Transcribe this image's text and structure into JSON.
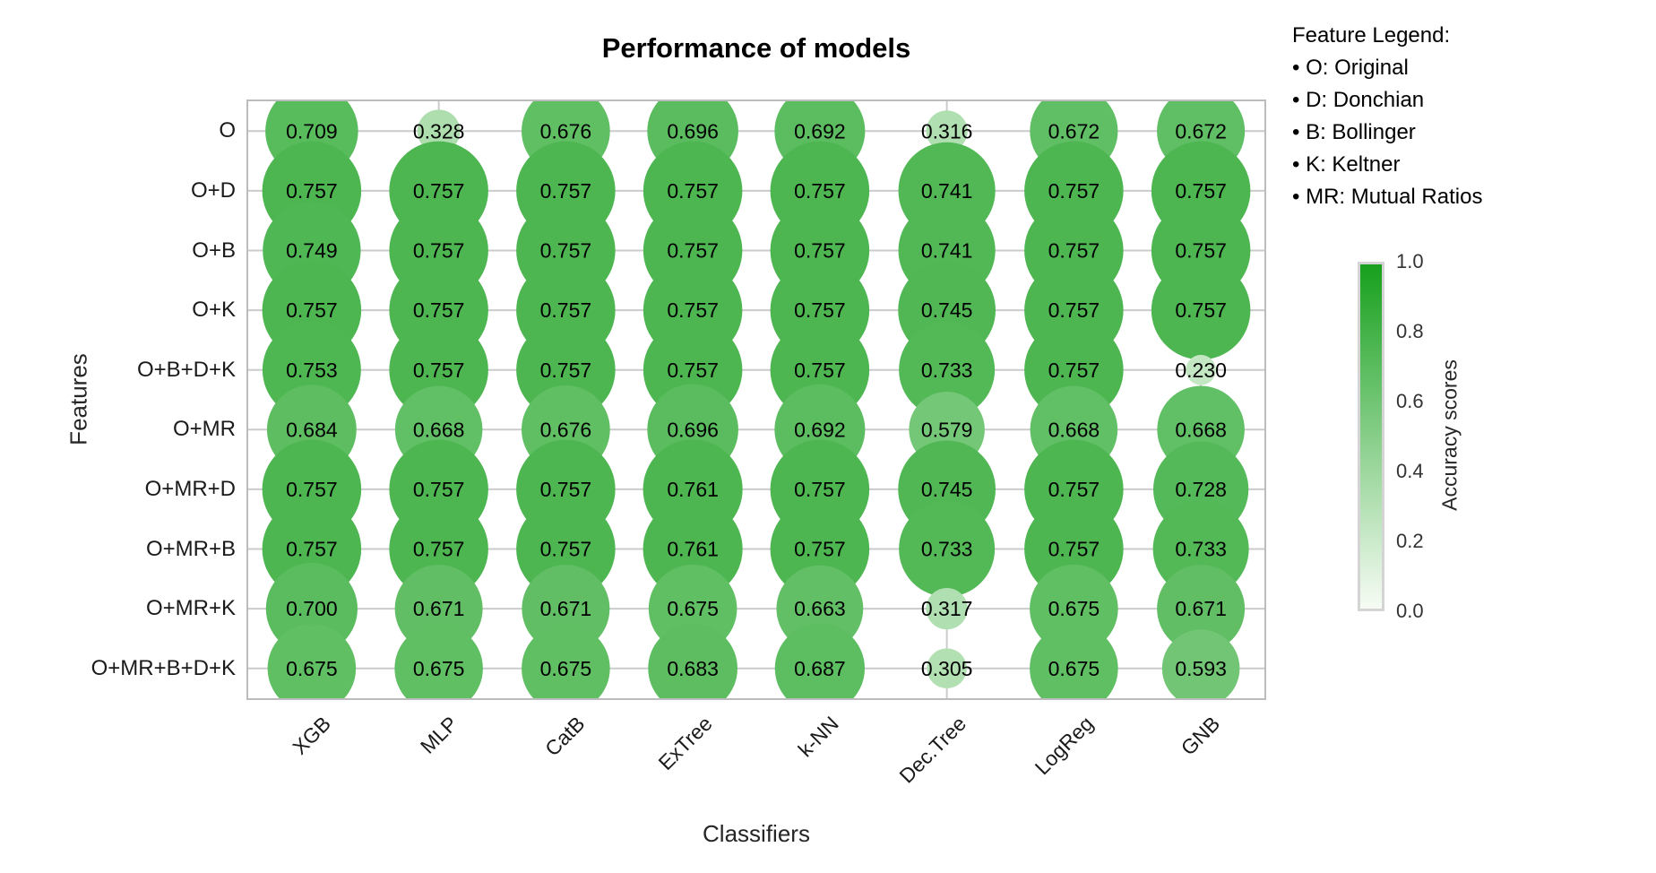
{
  "chart_data": {
    "type": "bubble",
    "title": "Performance of models",
    "xlabel": "Classifiers",
    "ylabel": "Features",
    "x_categories": [
      "XGB",
      "MLP",
      "CatB",
      "ExTree",
      "k-NN",
      "Dec.Tree",
      "LogReg",
      "GNB"
    ],
    "y_categories": [
      "O",
      "O+D",
      "O+B",
      "O+K",
      "O+B+D+K",
      "O+MR",
      "O+MR+D",
      "O+MR+B",
      "O+MR+K",
      "O+MR+B+D+K"
    ],
    "values": [
      [
        0.709,
        0.328,
        0.676,
        0.696,
        0.692,
        0.316,
        0.672,
        0.672
      ],
      [
        0.757,
        0.757,
        0.757,
        0.757,
        0.757,
        0.741,
        0.757,
        0.757
      ],
      [
        0.749,
        0.757,
        0.757,
        0.757,
        0.757,
        0.741,
        0.757,
        0.757
      ],
      [
        0.757,
        0.757,
        0.757,
        0.757,
        0.757,
        0.745,
        0.757,
        0.757
      ],
      [
        0.753,
        0.757,
        0.757,
        0.757,
        0.757,
        0.733,
        0.757,
        0.23
      ],
      [
        0.684,
        0.668,
        0.676,
        0.696,
        0.692,
        0.579,
        0.668,
        0.668
      ],
      [
        0.757,
        0.757,
        0.757,
        0.761,
        0.757,
        0.745,
        0.757,
        0.728
      ],
      [
        0.757,
        0.757,
        0.757,
        0.761,
        0.757,
        0.733,
        0.757,
        0.733
      ],
      [
        0.7,
        0.671,
        0.671,
        0.675,
        0.663,
        0.317,
        0.675,
        0.671
      ],
      [
        0.675,
        0.675,
        0.675,
        0.683,
        0.687,
        0.305,
        0.675,
        0.593
      ]
    ],
    "value_decimals": 3,
    "grid": true,
    "colormap": {
      "start": "#f7fcf5",
      "end": "#17a01d"
    },
    "colors": {
      "grid": "#cbcbcb",
      "spine": "#bcbcbc",
      "value_text": "#000000"
    },
    "colorbar": {
      "label": "Accuracy scores",
      "min": 0.0,
      "max": 1.0,
      "ticks": [
        "1.0",
        "0.8",
        "0.6",
        "0.4",
        "0.2",
        "0.0"
      ]
    },
    "legend": {
      "title": "Feature Legend:",
      "items": [
        "• O: Original",
        "• D: Donchian",
        "• B: Bollinger",
        "• K: Keltner",
        "• MR: Mutual Ratios"
      ]
    }
  }
}
